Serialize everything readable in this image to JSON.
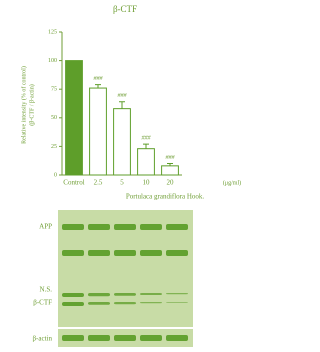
{
  "chart_data": {
    "type": "bar",
    "title": "β-CTF",
    "ylabel": [
      "Relative intensity (% of control)",
      "(β-CTF / β-actin)"
    ],
    "xlabel": "Portulaca grandiflora Hook.",
    "xunit": "(μg/ml)",
    "categories": [
      "Control",
      "2.5",
      "5",
      "10",
      "20"
    ],
    "values": [
      100,
      76,
      58,
      23,
      8
    ],
    "errors": [
      0,
      3,
      6,
      4,
      2
    ],
    "annotations": [
      null,
      "###",
      "###",
      "###",
      "###"
    ],
    "color": "#5e9e2a",
    "fills": [
      "#5e9e2a",
      "#ffffff",
      "#ffffff",
      "#ffffff",
      "#ffffff"
    ],
    "ylim": [
      0,
      125
    ],
    "yticks": [
      0,
      25,
      50,
      75,
      100,
      125
    ]
  },
  "blot": {
    "labels": [
      "APP",
      "N.S.",
      "β-CTF",
      "β-actin"
    ]
  }
}
